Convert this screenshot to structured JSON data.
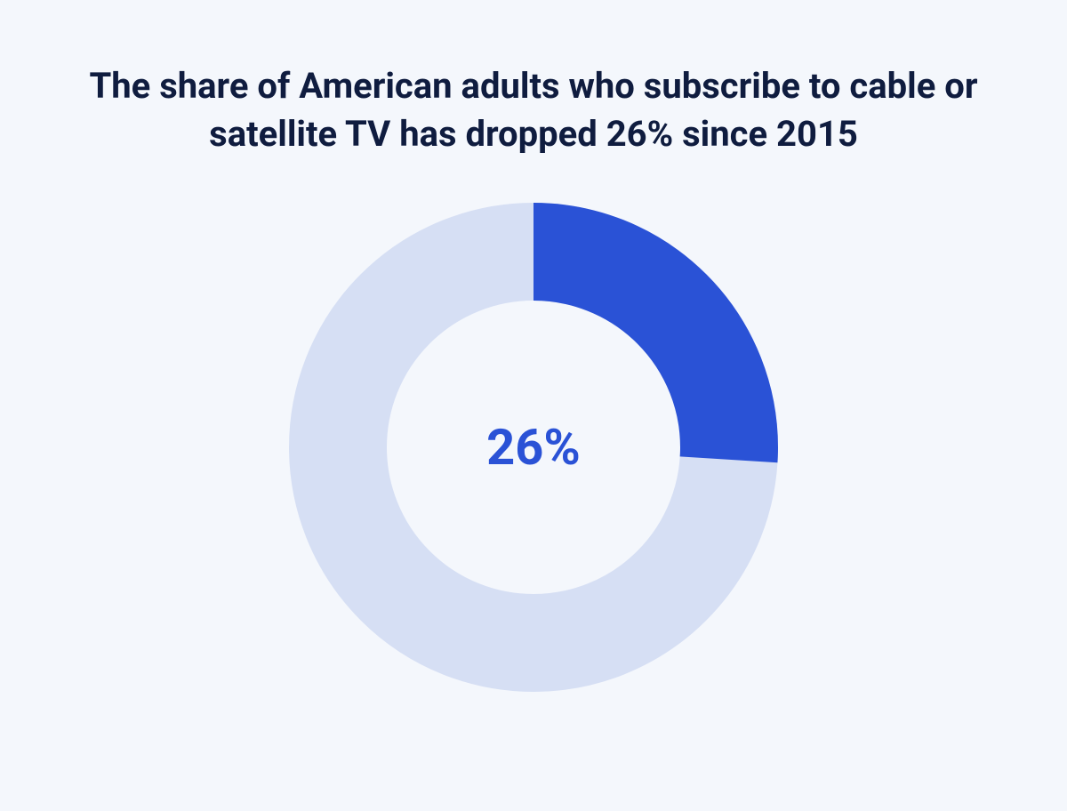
{
  "title": {
    "text": "The share of American adults who subscribe to cable or satellite TV has dropped 26% since 2015",
    "color": "#0f1c3f",
    "fontsize": 40
  },
  "background_color": "#f4f7fc",
  "chart": {
    "type": "donut",
    "value_percent": 26,
    "center_label": "26%",
    "center_label_color": "#2a52d6",
    "center_label_fontsize": 56,
    "outer_diameter": 550,
    "ring_thickness": 110,
    "fill_color": "#2a52d6",
    "track_color": "#d6dff4",
    "start_angle_deg": 0
  }
}
